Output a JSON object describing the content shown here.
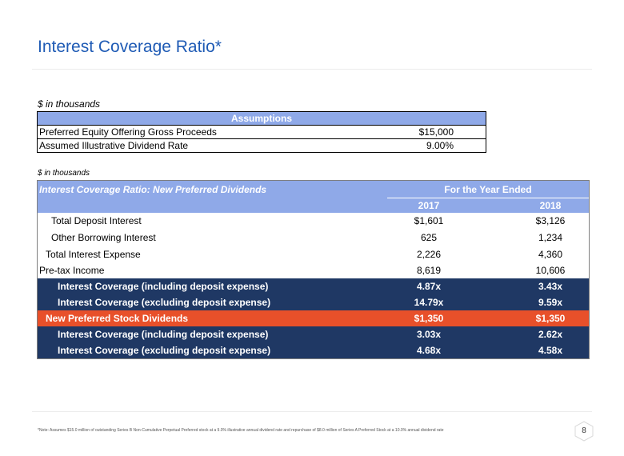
{
  "page": {
    "title": "Interest Coverage Ratio*",
    "page_number": "8"
  },
  "assumptions": {
    "units": "$ in thousands",
    "header": "Assumptions",
    "rows": [
      {
        "label": "Preferred Equity Offering Gross Proceeds",
        "value": "$15,000"
      },
      {
        "label": "Assumed Illustrative Dividend Rate",
        "value": "9.00%"
      }
    ]
  },
  "coverage": {
    "units": "$ in thousands",
    "title": "Interest Coverage Ratio: New Preferred Dividends",
    "period_header": "For the Year Ended",
    "years": [
      "2017",
      "2018"
    ],
    "rows": [
      {
        "label": "Total Deposit Interest",
        "v1": "$1,601",
        "v2": "$3,126"
      },
      {
        "label": "Other Borrowing Interest",
        "v1": "625",
        "v2": "1,234"
      },
      {
        "label": "Total Interest Expense",
        "v1": "2,226",
        "v2": "4,360"
      },
      {
        "label": "Pre-tax Income",
        "v1": "8,619",
        "v2": "10,606"
      },
      {
        "label": "Interest Coverage (including deposit expense)",
        "v1": "4.87x",
        "v2": "3.43x"
      },
      {
        "label": "Interest Coverage (excluding deposit expense)",
        "v1": "14.79x",
        "v2": "9.59x"
      },
      {
        "label": "New Preferred Stock Dividends",
        "v1": "$1,350",
        "v2": "$1,350"
      },
      {
        "label": "Interest Coverage (including deposit expense)",
        "v1": "3.03x",
        "v2": "2.62x"
      },
      {
        "label": "Interest Coverage (excluding deposit expense)",
        "v1": "4.68x",
        "v2": "4.58x"
      }
    ]
  },
  "footnote": "*Note: Assumes $15.0 million of outstanding Series B Non-Cumulative Perpetual Preferred stock at a 9.0% illustrative annual dividend rate and repurchase of $8.0 million of Series A Preferred Stock at a 10.0% annual dividend rate",
  "colors": {
    "title_blue": "#1f5bb5",
    "header_blue": "#8fa9e8",
    "navy": "#1f3864",
    "orange": "#e8502a"
  }
}
